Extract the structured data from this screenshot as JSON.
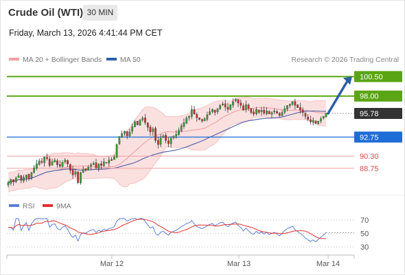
{
  "header": {
    "title": "Crude Oil (WTI)",
    "timeframe": "30 MIN"
  },
  "datetime": "Friday, March 13, 2026 4:41:44 PM CET",
  "colors": {
    "green": "#5aa514",
    "blue": "#1f6dd6",
    "red": "#e04a4a",
    "dark": "#333333",
    "bull": "#3a9a3a",
    "bear": "#c23030",
    "bollinger_fill": "#fbe0e0",
    "ma20": "#f2a0a0",
    "ma50": "#4a5fa8",
    "rsi": "#5b7fd6",
    "rsi_ma": "#e03030",
    "arrow": "#2d5fa6"
  },
  "chart_data": [
    {
      "type": "candlestick",
      "legend": {
        "placement": "top-left",
        "items": [
          {
            "name": "MA 20 + Bollinger Bands",
            "color": "#f2a0a0",
            "icon": "line-swatch"
          },
          {
            "name": "MA 50",
            "color": "#2d5fa6",
            "icon": "line-swatch"
          }
        ]
      },
      "credit": "Research © 2026 Trading Central",
      "x_ticks": [
        "Mar 12",
        "Mar 13",
        "Mar 14"
      ],
      "ylim": [
        86.0,
        101.5
      ],
      "grid": false,
      "levels": [
        {
          "label": "100.50",
          "value": 100.5,
          "kind": "resistance",
          "style": "box",
          "color": "#5aa514"
        },
        {
          "label": "98.00",
          "value": 98.0,
          "kind": "resistance",
          "style": "box",
          "color": "#5aa514"
        },
        {
          "label": "95.78",
          "value": 95.78,
          "kind": "last-price",
          "style": "box",
          "color": "#333333"
        },
        {
          "label": "92.75",
          "value": 92.75,
          "kind": "pivot",
          "style": "box",
          "color": "#1f6dd6"
        },
        {
          "label": "90.30",
          "value": 90.3,
          "kind": "support",
          "style": "text",
          "color": "#e04a4a"
        },
        {
          "label": "88.75",
          "value": 88.75,
          "kind": "support",
          "style": "text",
          "color": "#e04a4a"
        }
      ],
      "arrow": {
        "from": 95.78,
        "to": 100.5,
        "direction": "up"
      },
      "series": {
        "close": [
          86.9,
          87.3,
          87.0,
          87.5,
          87.8,
          87.2,
          87.6,
          87.9,
          87.4,
          88.2,
          88.8,
          89.3,
          89.7,
          89.5,
          90.2,
          90.0,
          89.1,
          89.6,
          89.8,
          89.2,
          89.0,
          89.5,
          89.8,
          89.3,
          88.5,
          87.9,
          88.3,
          86.9,
          88.2,
          88.6,
          88.5,
          88.9,
          89.2,
          89.4,
          88.8,
          89.3,
          89.1,
          89.6,
          89.4,
          89.8,
          89.9,
          90.2,
          91.8,
          92.8,
          93.2,
          93.5,
          92.9,
          93.4,
          94.1,
          94.7,
          94.3,
          94.9,
          95.2,
          94.6,
          94.0,
          93.4,
          93.8,
          92.3,
          91.8,
          92.6,
          92.9,
          92.3,
          91.9,
          92.6,
          92.9,
          93.1,
          93.6,
          94.2,
          94.6,
          95.2,
          95.4,
          96.3,
          95.7,
          95.2,
          95.0,
          94.8,
          95.1,
          95.6,
          96.0,
          96.3,
          95.9,
          96.4,
          96.8,
          97.0,
          96.6,
          96.3,
          96.9,
          97.3,
          97.6,
          97.1,
          96.8,
          96.2,
          96.9,
          96.4,
          95.9,
          95.7,
          96.3,
          95.9,
          96.2,
          95.8,
          96.1,
          95.7,
          95.9,
          96.1,
          95.8,
          95.5,
          95.9,
          96.4,
          96.8,
          97.0,
          97.3,
          96.8,
          96.5,
          96.2,
          95.9,
          95.4,
          95.0,
          94.7,
          94.9,
          94.5,
          94.8,
          95.1,
          95.4,
          95.78
        ],
        "rsi_range": [
          30,
          70
        ],
        "rsi_ticks": [
          "70",
          "50",
          "30"
        ],
        "rsi_last": 58
      }
    },
    {
      "type": "line",
      "legend": {
        "placement": "top-left",
        "items": [
          {
            "name": "RSI",
            "color": "#5b7fd6",
            "icon": "line-swatch"
          },
          {
            "name": "9MA",
            "color": "#e03030",
            "icon": "line-swatch"
          }
        ]
      },
      "ylim": [
        25,
        75
      ],
      "y_ticks": [
        70,
        50,
        30
      ]
    }
  ]
}
